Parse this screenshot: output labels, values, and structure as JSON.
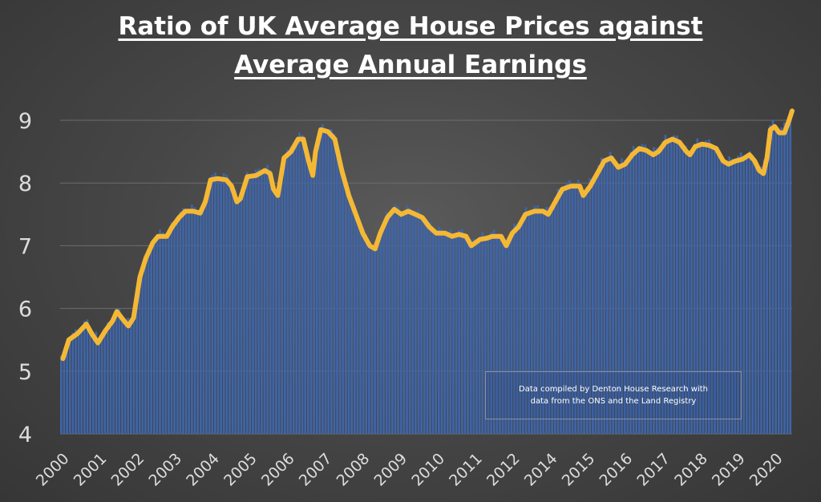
{
  "chart_data": {
    "type": "bar",
    "title_line1": "Ratio of UK Average House Prices against",
    "title_line2": "Average Annual Earnings",
    "xlabel": "",
    "ylabel": "",
    "ylim": [
      4,
      9.3
    ],
    "yticks": [
      4,
      5,
      6,
      7,
      8,
      9
    ],
    "year_labels": [
      "2000",
      "2001",
      "2002",
      "2003",
      "2004",
      "2005",
      "2006",
      "2007",
      "2008",
      "2009",
      "2010",
      "2011",
      "2012",
      "2014",
      "2015",
      "2016",
      "2017",
      "2018",
      "2019",
      "2020"
    ],
    "grid": true,
    "bar_color": "#3f65a8",
    "line_color": "#f5b834",
    "annotation_line1": "Data compiled by Denton House Research with",
    "annotation_line2": "data from the ONS and the Land Registry",
    "x_start": 2000.0,
    "x_end": 2020.92,
    "series": [
      {
        "values": [
          [
            2000.08,
            5.2
          ],
          [
            2000.25,
            5.5
          ],
          [
            2000.5,
            5.6
          ],
          [
            2000.75,
            5.75
          ],
          [
            2000.9,
            5.6
          ],
          [
            2001.08,
            5.45
          ],
          [
            2001.3,
            5.65
          ],
          [
            2001.5,
            5.8
          ],
          [
            2001.62,
            5.95
          ],
          [
            2001.8,
            5.82
          ],
          [
            2001.95,
            5.72
          ],
          [
            2002.1,
            5.85
          ],
          [
            2002.28,
            6.5
          ],
          [
            2002.45,
            6.8
          ],
          [
            2002.65,
            7.05
          ],
          [
            2002.8,
            7.15
          ],
          [
            2003.05,
            7.15
          ],
          [
            2003.2,
            7.3
          ],
          [
            2003.4,
            7.45
          ],
          [
            2003.58,
            7.55
          ],
          [
            2003.8,
            7.55
          ],
          [
            2004.0,
            7.52
          ],
          [
            2004.15,
            7.7
          ],
          [
            2004.3,
            8.05
          ],
          [
            2004.5,
            8.07
          ],
          [
            2004.75,
            8.05
          ],
          [
            2004.9,
            7.95
          ],
          [
            2005.05,
            7.7
          ],
          [
            2005.15,
            7.75
          ],
          [
            2005.35,
            8.1
          ],
          [
            2005.6,
            8.12
          ],
          [
            2005.85,
            8.2
          ],
          [
            2006.0,
            8.15
          ],
          [
            2006.1,
            7.9
          ],
          [
            2006.22,
            7.8
          ],
          [
            2006.4,
            8.4
          ],
          [
            2006.6,
            8.5
          ],
          [
            2006.8,
            8.7
          ],
          [
            2006.95,
            8.7
          ],
          [
            2007.1,
            8.35
          ],
          [
            2007.22,
            8.12
          ],
          [
            2007.3,
            8.5
          ],
          [
            2007.45,
            8.85
          ],
          [
            2007.65,
            8.82
          ],
          [
            2007.85,
            8.7
          ],
          [
            2008.05,
            8.2
          ],
          [
            2008.25,
            7.8
          ],
          [
            2008.45,
            7.5
          ],
          [
            2008.65,
            7.2
          ],
          [
            2008.85,
            7.0
          ],
          [
            2009.0,
            6.95
          ],
          [
            2009.15,
            7.2
          ],
          [
            2009.35,
            7.45
          ],
          [
            2009.55,
            7.58
          ],
          [
            2009.75,
            7.5
          ],
          [
            2009.95,
            7.55
          ],
          [
            2010.15,
            7.5
          ],
          [
            2010.35,
            7.45
          ],
          [
            2010.55,
            7.3
          ],
          [
            2010.75,
            7.2
          ],
          [
            2011.0,
            7.2
          ],
          [
            2011.2,
            7.15
          ],
          [
            2011.4,
            7.18
          ],
          [
            2011.6,
            7.15
          ],
          [
            2011.75,
            7.0
          ],
          [
            2012.0,
            7.1
          ],
          [
            2012.2,
            7.12
          ],
          [
            2012.35,
            7.15
          ],
          [
            2012.6,
            7.15
          ],
          [
            2012.75,
            7.0
          ],
          [
            2012.92,
            7.2
          ],
          [
            2013.1,
            7.3
          ],
          [
            2013.3,
            7.5
          ],
          [
            2013.55,
            7.55
          ],
          [
            2013.8,
            7.55
          ],
          [
            2013.95,
            7.5
          ],
          [
            2014.1,
            7.65
          ],
          [
            2014.35,
            7.9
          ],
          [
            2014.6,
            7.95
          ],
          [
            2014.85,
            7.95
          ],
          [
            2014.95,
            7.8
          ],
          [
            2015.15,
            7.95
          ],
          [
            2015.35,
            8.15
          ],
          [
            2015.55,
            8.35
          ],
          [
            2015.75,
            8.4
          ],
          [
            2015.95,
            8.25
          ],
          [
            2016.15,
            8.3
          ],
          [
            2016.35,
            8.45
          ],
          [
            2016.55,
            8.55
          ],
          [
            2016.75,
            8.52
          ],
          [
            2016.95,
            8.45
          ],
          [
            2017.1,
            8.5
          ],
          [
            2017.3,
            8.65
          ],
          [
            2017.5,
            8.7
          ],
          [
            2017.7,
            8.65
          ],
          [
            2017.9,
            8.5
          ],
          [
            2018.0,
            8.45
          ],
          [
            2018.15,
            8.58
          ],
          [
            2018.35,
            8.62
          ],
          [
            2018.55,
            8.6
          ],
          [
            2018.75,
            8.55
          ],
          [
            2018.95,
            8.35
          ],
          [
            2019.1,
            8.3
          ],
          [
            2019.3,
            8.35
          ],
          [
            2019.5,
            8.38
          ],
          [
            2019.7,
            8.45
          ],
          [
            2019.85,
            8.35
          ],
          [
            2019.98,
            8.2
          ],
          [
            2020.1,
            8.15
          ],
          [
            2020.2,
            8.4
          ],
          [
            2020.3,
            8.85
          ],
          [
            2020.42,
            8.9
          ],
          [
            2020.55,
            8.8
          ],
          [
            2020.7,
            8.8
          ],
          [
            2020.8,
            8.95
          ],
          [
            2020.92,
            9.15
          ]
        ]
      }
    ]
  }
}
